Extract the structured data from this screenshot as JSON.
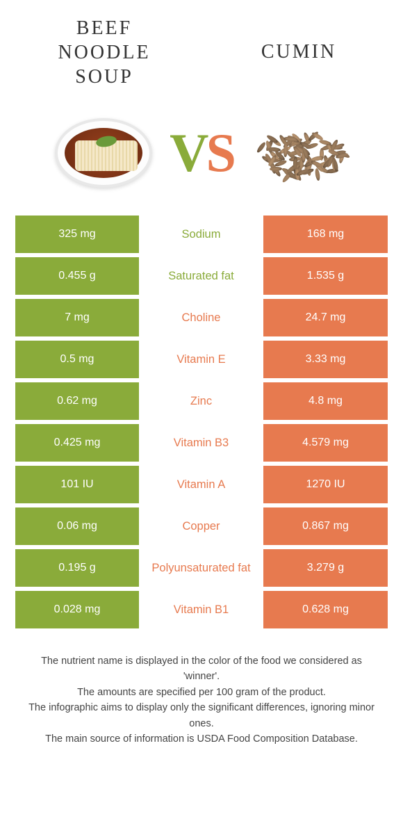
{
  "colors": {
    "green": "#8aab3a",
    "orange": "#e77a4f",
    "green_text": "#8aab3a",
    "orange_text": "#e77a4f",
    "vs_v": "#8aab3a",
    "vs_s": "#e77a4f"
  },
  "titles": {
    "left": "Beef Noodle Soup",
    "right": "Cumin",
    "vs_v": "V",
    "vs_s": "S"
  },
  "rows": [
    {
      "left": "325 mg",
      "label": "Sodium",
      "right": "168 mg",
      "winner": "green"
    },
    {
      "left": "0.455 g",
      "label": "Saturated fat",
      "right": "1.535 g",
      "winner": "green"
    },
    {
      "left": "7 mg",
      "label": "Choline",
      "right": "24.7 mg",
      "winner": "orange"
    },
    {
      "left": "0.5 mg",
      "label": "Vitamin E",
      "right": "3.33 mg",
      "winner": "orange"
    },
    {
      "left": "0.62 mg",
      "label": "Zinc",
      "right": "4.8 mg",
      "winner": "orange"
    },
    {
      "left": "0.425 mg",
      "label": "Vitamin B3",
      "right": "4.579 mg",
      "winner": "orange"
    },
    {
      "left": "101 IU",
      "label": "Vitamin A",
      "right": "1270 IU",
      "winner": "orange"
    },
    {
      "left": "0.06 mg",
      "label": "Copper",
      "right": "0.867 mg",
      "winner": "orange"
    },
    {
      "left": "0.195 g",
      "label": "Polyunsaturated fat",
      "right": "3.279 g",
      "winner": "orange"
    },
    {
      "left": "0.028 mg",
      "label": "Vitamin B1",
      "right": "0.628 mg",
      "winner": "orange"
    }
  ],
  "footer": {
    "line1a": "The nutrient name is displayed in the color of the food we considered as",
    "line1b": "'winner'.",
    "line2": "The amounts are specified per 100 gram of the product.",
    "line3a": "The infographic aims to display only the significant differences, ignoring minor",
    "line3b": "ones.",
    "line4": "The main source of information is USDA Food Composition Database."
  }
}
